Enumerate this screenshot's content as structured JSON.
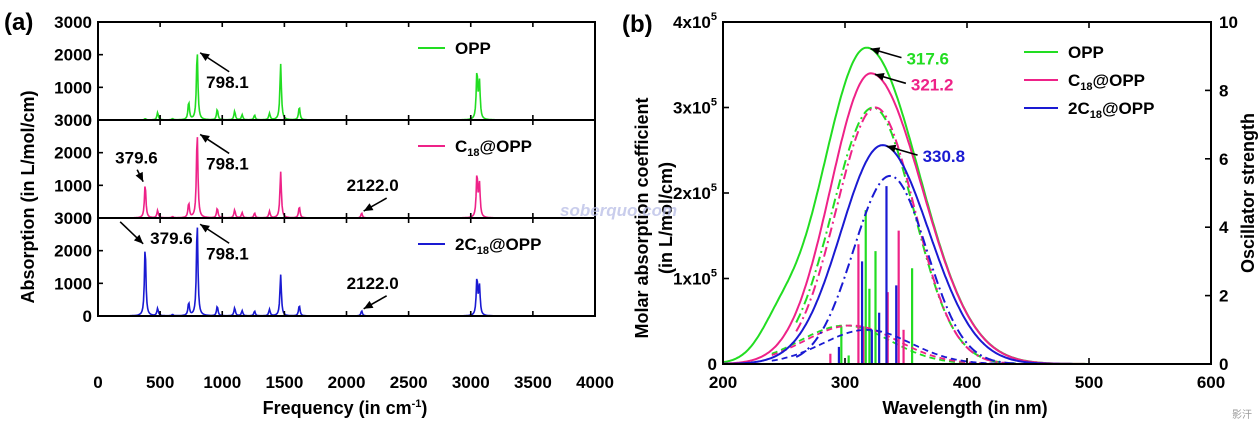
{
  "colors": {
    "opp": "#22dd22",
    "c18opp": "#ee2288",
    "c2c18opp": "#1a1ad2"
  },
  "panel_a": {
    "label": "(a)",
    "ylabel": "Absorption (in L/mol/cm)",
    "xlabel": "Frequency (in cm",
    "xlabel_sup": "-1",
    "xlabel_end": ")"
  },
  "panel_b": {
    "label": "(b)",
    "ylabel_line1": "Molar absorption coefficient",
    "ylabel_line2": "(in L/mol/cm)",
    "y2label": "Oscillator strength",
    "xlabel": "Wavelength (in nm)"
  },
  "watermark": "soberquo.com",
  "corner_mark": "影汗",
  "chart_data": [
    {
      "type": "line",
      "panel": "a",
      "subplots": [
        {
          "name": "OPP",
          "legend": "OPP",
          "legend_sub": "",
          "ylim": [
            0,
            3000
          ],
          "yticks": [
            "0",
            "1000",
            "2000",
            "3000"
          ],
          "peaks": [
            [
              380,
              40
            ],
            [
              480,
              230
            ],
            [
              600,
              40
            ],
            [
              730,
              550
            ],
            [
              798.1,
              2150
            ],
            [
              960,
              330
            ],
            [
              1100,
              270
            ],
            [
              1160,
              160
            ],
            [
              1260,
              150
            ],
            [
              1380,
              200
            ],
            [
              1470,
              1720
            ],
            [
              1620,
              400
            ],
            [
              3050,
              1460
            ],
            [
              3070,
              1120
            ]
          ],
          "annotations": [
            {
              "text": "798.1",
              "x": 798.1,
              "y": 2150
            }
          ]
        },
        {
          "name": "C18@OPP",
          "legend": "C",
          "legend_sub": "18",
          "legend_end": "@OPP",
          "ylim": [
            0,
            3000
          ],
          "yticks": [
            "0",
            "1000",
            "2000",
            "3000"
          ],
          "peaks": [
            [
              379.6,
              1050
            ],
            [
              480,
              230
            ],
            [
              600,
              40
            ],
            [
              730,
              450
            ],
            [
              798.1,
              2650
            ],
            [
              960,
              300
            ],
            [
              1100,
              250
            ],
            [
              1160,
              160
            ],
            [
              1260,
              150
            ],
            [
              1380,
              200
            ],
            [
              1470,
              1420
            ],
            [
              1620,
              350
            ],
            [
              2122.0,
              150
            ],
            [
              3050,
              1320
            ],
            [
              3070,
              1000
            ]
          ],
          "annotations": [
            {
              "text": "379.6",
              "x": 379.6,
              "y": 1050
            },
            {
              "text": "798.1",
              "x": 798.1,
              "y": 2650
            },
            {
              "text": "2122.0",
              "x": 2122.0,
              "y": 150
            }
          ]
        },
        {
          "name": "2C18@OPP",
          "legend": "2C",
          "legend_sub": "18",
          "legend_end": "@OPP",
          "ylim": [
            0,
            3000
          ],
          "yticks": [
            "0",
            "1000",
            "2000",
            "3000"
          ],
          "peaks": [
            [
              379.6,
              2150
            ],
            [
              480,
              230
            ],
            [
              600,
              40
            ],
            [
              730,
              400
            ],
            [
              798.1,
              2900
            ],
            [
              960,
              300
            ],
            [
              1100,
              250
            ],
            [
              1160,
              160
            ],
            [
              1260,
              150
            ],
            [
              1380,
              200
            ],
            [
              1470,
              1270
            ],
            [
              1620,
              330
            ],
            [
              2122.0,
              160
            ],
            [
              3050,
              1150
            ],
            [
              3070,
              880
            ]
          ],
          "annotations": [
            {
              "text": "379.6",
              "x": 379.6,
              "y": 2150
            },
            {
              "text": "798.1",
              "x": 798.1,
              "y": 2900
            },
            {
              "text": "2122.0",
              "x": 2122.0,
              "y": 160
            }
          ]
        }
      ],
      "xlim": [
        0,
        4000
      ],
      "xticks": [
        "0",
        "500",
        "1000",
        "1500",
        "2000",
        "2500",
        "3000",
        "3500",
        "4000"
      ]
    },
    {
      "type": "line",
      "panel": "b",
      "xlim": [
        200,
        600
      ],
      "xticks": [
        "200",
        "300",
        "400",
        "500",
        "600"
      ],
      "ylim": [
        0,
        400000
      ],
      "yticks": [
        {
          "m": "0",
          "e": ""
        },
        {
          "m": "1x10",
          "e": "5"
        },
        {
          "m": "2x10",
          "e": "5"
        },
        {
          "m": "3x10",
          "e": "5"
        },
        {
          "m": "4x10",
          "e": "5"
        }
      ],
      "y2lim": [
        0,
        10
      ],
      "y2ticks": [
        "0",
        "2",
        "4",
        "6",
        "8",
        "10"
      ],
      "series": [
        {
          "name": "OPP",
          "legend": "OPP",
          "legend_sub": "",
          "legend_end": "",
          "peak_x": 317.6,
          "peak_y": 370000,
          "sigma_left": 36,
          "sigma_right": 43,
          "shoulder": {
            "x": 245,
            "h": 26000,
            "w": 15
          },
          "dashdot": {
            "x": 323,
            "h": 300000,
            "w": 33
          },
          "dashed": {
            "x": 300,
            "h": 45000,
            "w": 37
          },
          "sticks": [
            [
              297,
              1.1
            ],
            [
              303,
              0.25
            ],
            [
              317,
              4.5
            ],
            [
              320,
              2.2
            ],
            [
              325,
              3.3
            ],
            [
              355,
              2.8
            ]
          ],
          "label": "317.6"
        },
        {
          "name": "C18@OPP",
          "legend": "C",
          "legend_sub": "18",
          "legend_end": "@OPP",
          "peak_x": 321.2,
          "peak_y": 340000,
          "sigma_left": 33,
          "sigma_right": 42,
          "shoulder": null,
          "dashdot": {
            "x": 325,
            "h": 300000,
            "w": 32
          },
          "dashed": {
            "x": 305,
            "h": 45000,
            "w": 38
          },
          "sticks": [
            [
              288,
              0.3
            ],
            [
              311,
              3.5
            ],
            [
              315,
              1.1
            ],
            [
              335,
              2.1
            ],
            [
              344,
              3.9
            ],
            [
              348,
              1.0
            ]
          ],
          "label": "321.2"
        },
        {
          "name": "2C18@OPP",
          "legend": "2C",
          "legend_sub": "18",
          "legend_end": "@OPP",
          "peak_x": 330.8,
          "peak_y": 256000,
          "sigma_left": 34,
          "sigma_right": 38,
          "shoulder": null,
          "dashdot": {
            "x": 337,
            "h": 220000,
            "w": 30
          },
          "dashed": {
            "x": 318,
            "h": 40000,
            "w": 36
          },
          "sticks": [
            [
              295,
              0.5
            ],
            [
              314,
              3.0
            ],
            [
              322,
              1.0
            ],
            [
              328,
              1.5
            ],
            [
              334,
              5.2
            ],
            [
              342,
              2.3
            ]
          ],
          "label": "330.8"
        }
      ]
    }
  ]
}
